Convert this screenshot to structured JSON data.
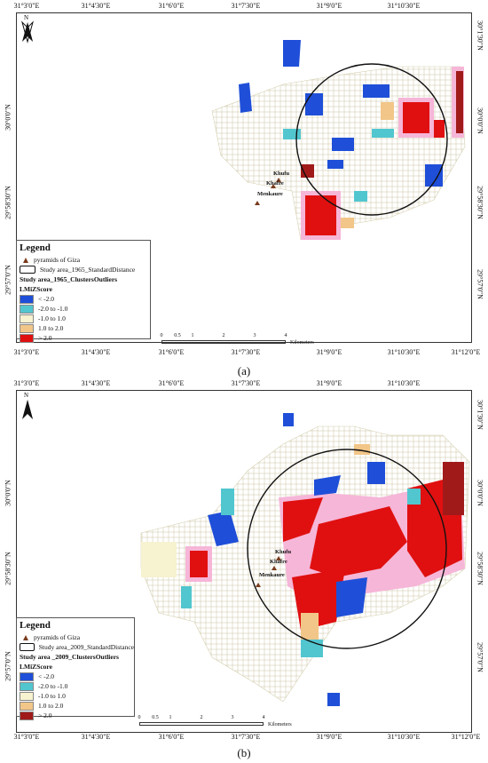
{
  "axis_ticks": {
    "top": [
      "31°3'0\"E",
      "31°4'30\"E",
      "31°6'0\"E",
      "31°7'30\"E",
      "31°9'0\"E",
      "31°10'30\"E"
    ],
    "bottom": [
      "31°3'0\"E",
      "31°4'30\"E",
      "31°6'0\"E",
      "31°7'30\"E",
      "31°9'0\"E",
      "31°10'30\"E",
      "31°12'0\"E"
    ],
    "left": [
      "30°0'0\"N",
      "29°58'30\"N",
      "29°57'0\"N"
    ],
    "right": [
      "30°1'30\"N",
      "30°0'0\"N",
      "29°58'30\"N",
      "29°57'0\"N"
    ]
  },
  "north_label": "N",
  "pyramids": [
    "Khufu",
    "Khafre",
    "Menkaure"
  ],
  "scale": {
    "labels": [
      "0",
      "0.5",
      "1",
      "2",
      "3",
      "4"
    ],
    "unit": "Kilometers"
  },
  "colors": {
    "lt_neg2": "#1f4fd8",
    "neg2_neg1": "#52c6cf",
    "neg1_1": "#f7f2cf",
    "1_2": "#f2c688",
    "gt2_a": "#e01010",
    "gt2_b": "#a11a1a",
    "halo": "#f6b6d8",
    "pyramid": "#7a3b1d"
  },
  "panel_a": {
    "caption": "(a)",
    "legend": {
      "title": "Legend",
      "pyramids_label": "pyramids of Giza",
      "std_distance_label": "Study area_1965_StandardDistance",
      "clusters_label": "Study area_1965_ClustersOutliers",
      "field_label": "LMiZScore",
      "classes": [
        "< -2.0",
        "-2.0 to -1.0",
        "-1.0 to 1.0",
        "1.0 to 2.0",
        "> 2.0"
      ]
    }
  },
  "panel_b": {
    "caption": "(b)",
    "legend": {
      "title": "Legend",
      "pyramids_label": "pyramids of Giza",
      "std_distance_label": "Study area_2009_StandardDistance",
      "clusters_label": "Study area _2009_ClustersOutliers",
      "field_label": "LMiZScore",
      "classes": [
        "< -2.0",
        "-2.0 to -1.0",
        "-1.0 to 1.0",
        "1.0 to 2.0",
        "> 2.0"
      ]
    }
  }
}
